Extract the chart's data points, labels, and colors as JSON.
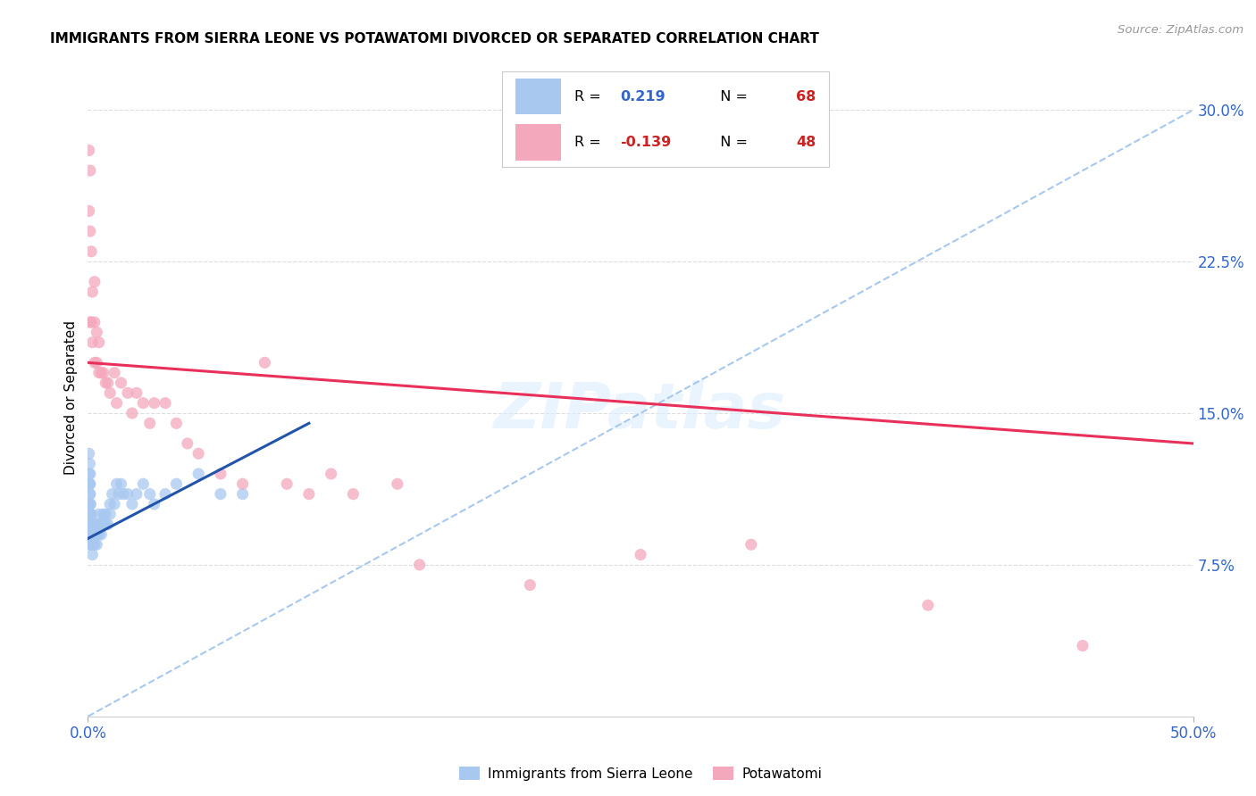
{
  "title": "IMMIGRANTS FROM SIERRA LEONE VS POTAWATOMI DIVORCED OR SEPARATED CORRELATION CHART",
  "source": "Source: ZipAtlas.com",
  "ylabel": "Divorced or Separated",
  "right_yticks": [
    "7.5%",
    "15.0%",
    "22.5%",
    "30.0%"
  ],
  "right_ytick_vals": [
    0.075,
    0.15,
    0.225,
    0.3
  ],
  "legend_blue_r": "0.219",
  "legend_blue_n": "68",
  "legend_pink_r": "-0.139",
  "legend_pink_n": "48",
  "blue_color": "#a8c8f0",
  "pink_color": "#f4a8bc",
  "blue_line_color": "#2255aa",
  "pink_line_color": "#e8305a",
  "dash_line_color": "#a8c8f0",
  "watermark": "ZIPatlas",
  "blue_scatter_x": [
    0.0005,
    0.0005,
    0.0005,
    0.0005,
    0.0005,
    0.0008,
    0.0008,
    0.0008,
    0.0008,
    0.001,
    0.001,
    0.001,
    0.001,
    0.001,
    0.001,
    0.001,
    0.001,
    0.0012,
    0.0012,
    0.0012,
    0.0012,
    0.0015,
    0.0015,
    0.0015,
    0.0015,
    0.0018,
    0.0018,
    0.002,
    0.002,
    0.002,
    0.002,
    0.0025,
    0.0025,
    0.003,
    0.003,
    0.003,
    0.004,
    0.004,
    0.004,
    0.005,
    0.005,
    0.005,
    0.006,
    0.006,
    0.007,
    0.007,
    0.008,
    0.008,
    0.009,
    0.01,
    0.01,
    0.011,
    0.012,
    0.013,
    0.014,
    0.015,
    0.016,
    0.018,
    0.02,
    0.022,
    0.025,
    0.028,
    0.03,
    0.035,
    0.04,
    0.05,
    0.06,
    0.07
  ],
  "blue_scatter_y": [
    0.105,
    0.115,
    0.12,
    0.13,
    0.095,
    0.1,
    0.11,
    0.115,
    0.125,
    0.085,
    0.09,
    0.095,
    0.1,
    0.105,
    0.11,
    0.115,
    0.12,
    0.09,
    0.095,
    0.1,
    0.105,
    0.085,
    0.09,
    0.095,
    0.1,
    0.085,
    0.09,
    0.08,
    0.085,
    0.09,
    0.095,
    0.085,
    0.09,
    0.085,
    0.09,
    0.095,
    0.085,
    0.09,
    0.095,
    0.09,
    0.095,
    0.1,
    0.09,
    0.095,
    0.095,
    0.1,
    0.095,
    0.1,
    0.095,
    0.1,
    0.105,
    0.11,
    0.105,
    0.115,
    0.11,
    0.115,
    0.11,
    0.11,
    0.105,
    0.11,
    0.115,
    0.11,
    0.105,
    0.11,
    0.115,
    0.12,
    0.11,
    0.11
  ],
  "pink_scatter_x": [
    0.0005,
    0.0005,
    0.001,
    0.001,
    0.001,
    0.0015,
    0.0015,
    0.002,
    0.002,
    0.003,
    0.003,
    0.003,
    0.004,
    0.004,
    0.005,
    0.005,
    0.006,
    0.007,
    0.008,
    0.009,
    0.01,
    0.012,
    0.013,
    0.015,
    0.018,
    0.02,
    0.022,
    0.025,
    0.028,
    0.03,
    0.035,
    0.04,
    0.045,
    0.05,
    0.06,
    0.07,
    0.08,
    0.09,
    0.1,
    0.11,
    0.12,
    0.14,
    0.15,
    0.2,
    0.25,
    0.3,
    0.38,
    0.45
  ],
  "pink_scatter_y": [
    0.25,
    0.28,
    0.195,
    0.24,
    0.27,
    0.195,
    0.23,
    0.185,
    0.21,
    0.175,
    0.195,
    0.215,
    0.175,
    0.19,
    0.17,
    0.185,
    0.17,
    0.17,
    0.165,
    0.165,
    0.16,
    0.17,
    0.155,
    0.165,
    0.16,
    0.15,
    0.16,
    0.155,
    0.145,
    0.155,
    0.155,
    0.145,
    0.135,
    0.13,
    0.12,
    0.115,
    0.175,
    0.115,
    0.11,
    0.12,
    0.11,
    0.115,
    0.075,
    0.065,
    0.08,
    0.085,
    0.055,
    0.035
  ],
  "blue_line_x": [
    0.0,
    0.1
  ],
  "blue_line_y": [
    0.088,
    0.145
  ],
  "pink_line_x": [
    0.0,
    0.5
  ],
  "pink_line_y": [
    0.175,
    0.135
  ],
  "diag_line_x": [
    0.0,
    0.5
  ],
  "diag_line_y": [
    0.0,
    0.3
  ],
  "xmin": 0.0,
  "xmax": 0.5,
  "ymin": 0.0,
  "ymax": 0.315
}
